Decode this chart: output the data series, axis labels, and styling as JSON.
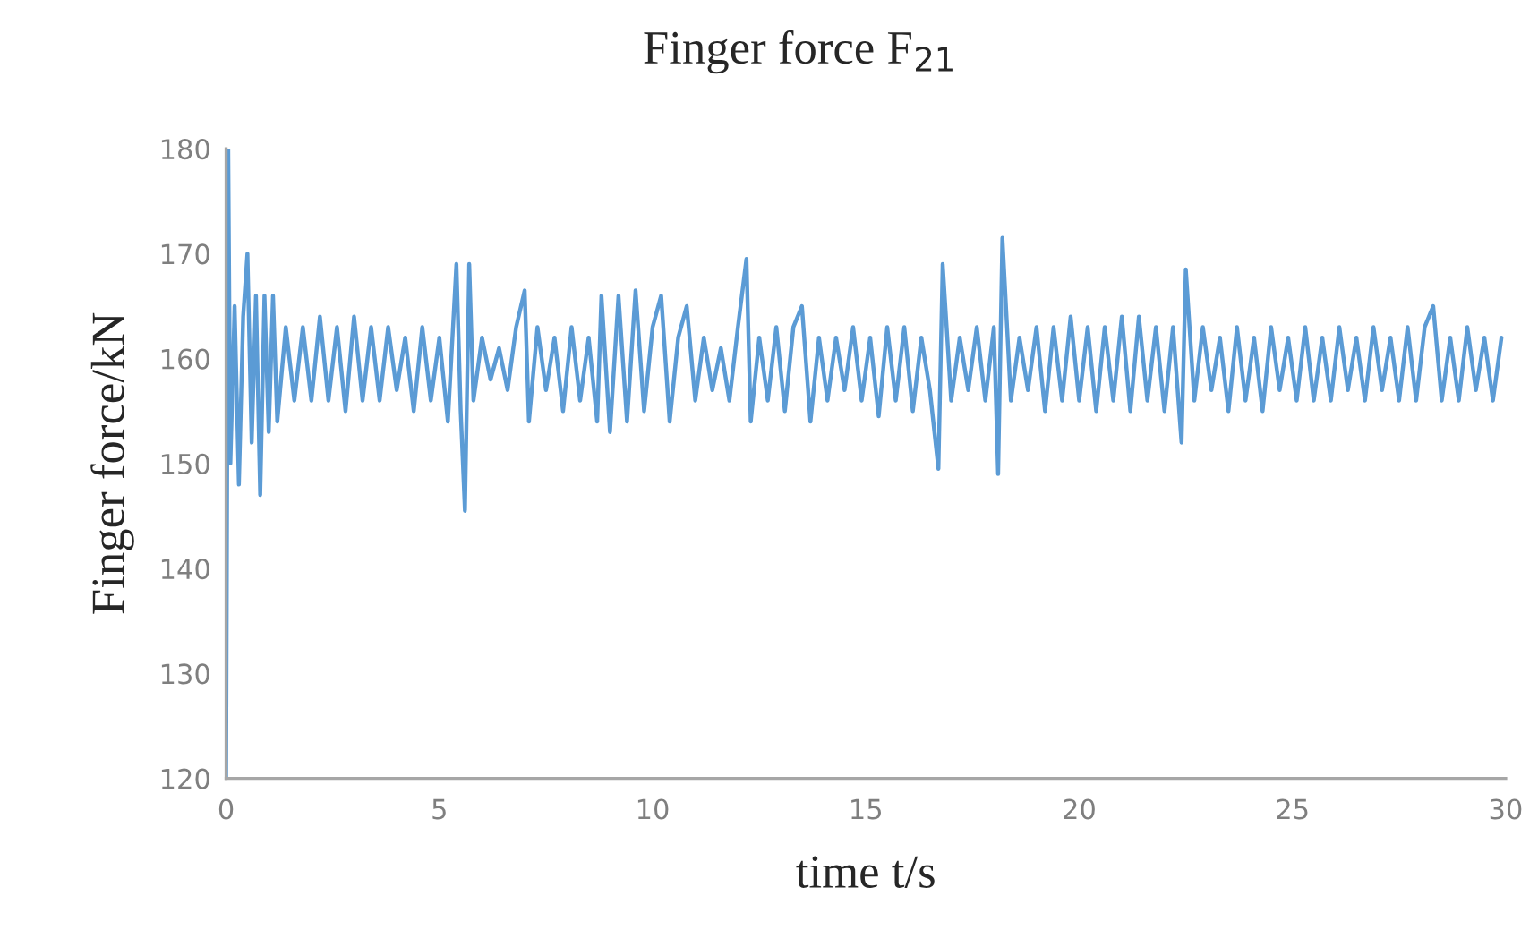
{
  "chart_data": {
    "type": "line",
    "title": "Finger force F$_{21}$",
    "xlabel": "time t/s",
    "ylabel": "Finger force/kN",
    "xlim": [
      0,
      30
    ],
    "xticks": [
      0,
      5,
      10,
      15,
      20,
      25,
      30
    ],
    "ylim": [
      120,
      180
    ],
    "yticks": [
      120,
      130,
      140,
      150,
      160,
      170,
      180
    ],
    "grid": false,
    "legend": false,
    "marker": "none",
    "line_style": "solid",
    "series": [
      {
        "color": "#5b9bd5",
        "x": [
          0,
          0.05,
          0.1,
          0.2,
          0.3,
          0.4,
          0.5,
          0.6,
          0.7,
          0.8,
          0.9,
          1.0,
          1.1,
          1.2,
          1.4,
          1.6,
          1.8,
          2.0,
          2.2,
          2.4,
          2.6,
          2.8,
          3.0,
          3.2,
          3.4,
          3.6,
          3.8,
          4.0,
          4.2,
          4.4,
          4.6,
          4.8,
          5.0,
          5.2,
          5.4,
          5.5,
          5.6,
          5.7,
          5.8,
          6.0,
          6.2,
          6.4,
          6.6,
          6.8,
          7.0,
          7.1,
          7.3,
          7.5,
          7.7,
          7.9,
          8.1,
          8.3,
          8.5,
          8.7,
          8.8,
          9.0,
          9.2,
          9.4,
          9.6,
          9.8,
          10.0,
          10.2,
          10.4,
          10.6,
          10.8,
          11.0,
          11.2,
          11.4,
          11.6,
          11.8,
          12.0,
          12.2,
          12.3,
          12.5,
          12.7,
          12.9,
          13.1,
          13.3,
          13.5,
          13.7,
          13.9,
          14.1,
          14.3,
          14.5,
          14.7,
          14.9,
          15.1,
          15.3,
          15.5,
          15.7,
          15.9,
          16.1,
          16.3,
          16.5,
          16.7,
          16.8,
          17.0,
          17.2,
          17.4,
          17.6,
          17.8,
          18.0,
          18.1,
          18.2,
          18.4,
          18.6,
          18.8,
          19.0,
          19.2,
          19.4,
          19.6,
          19.8,
          20.0,
          20.2,
          20.4,
          20.6,
          20.8,
          21.0,
          21.2,
          21.4,
          21.6,
          21.8,
          22.0,
          22.2,
          22.4,
          22.5,
          22.7,
          22.9,
          23.1,
          23.3,
          23.5,
          23.7,
          23.9,
          24.1,
          24.3,
          24.5,
          24.7,
          24.9,
          25.1,
          25.3,
          25.5,
          25.7,
          25.9,
          26.1,
          26.3,
          26.5,
          26.7,
          26.9,
          27.1,
          27.3,
          27.5,
          27.7,
          27.9,
          28.1,
          28.3,
          28.5,
          28.7,
          28.9,
          29.1,
          29.3,
          29.5,
          29.7,
          29.9
        ],
        "values": [
          120,
          180,
          150,
          165,
          148,
          164,
          170,
          152,
          166,
          147,
          166,
          153,
          166,
          154,
          163,
          156,
          163,
          156,
          164,
          156,
          163,
          155,
          164,
          156,
          163,
          156,
          163,
          157,
          162,
          155,
          163,
          156,
          162,
          154,
          169,
          155,
          145.5,
          169,
          156,
          162,
          158,
          161,
          157,
          163,
          166.5,
          154,
          163,
          157,
          162,
          155,
          163,
          156,
          162,
          154,
          166,
          153,
          166,
          154,
          166.5,
          155,
          163,
          166,
          154,
          162,
          165,
          156,
          162,
          157,
          161,
          156,
          163,
          169.5,
          154,
          162,
          156,
          163,
          155,
          163,
          165,
          154,
          162,
          156,
          162,
          157,
          163,
          156,
          162,
          154.5,
          163,
          156,
          163,
          155,
          162,
          157,
          149.5,
          169,
          156,
          162,
          157,
          163,
          156,
          163,
          149,
          171.5,
          156,
          162,
          157,
          163,
          155,
          163,
          156,
          164,
          156,
          163,
          155,
          163,
          156,
          164,
          155,
          164,
          156,
          163,
          155,
          163,
          152,
          168.5,
          156,
          163,
          157,
          162,
          155,
          163,
          156,
          162,
          155,
          163,
          157,
          162,
          156,
          163,
          156,
          162,
          156,
          163,
          157,
          162,
          156,
          163,
          157,
          162,
          156,
          163,
          156,
          163,
          165,
          156,
          162,
          156,
          163,
          157,
          162,
          156,
          162
        ]
      }
    ]
  }
}
